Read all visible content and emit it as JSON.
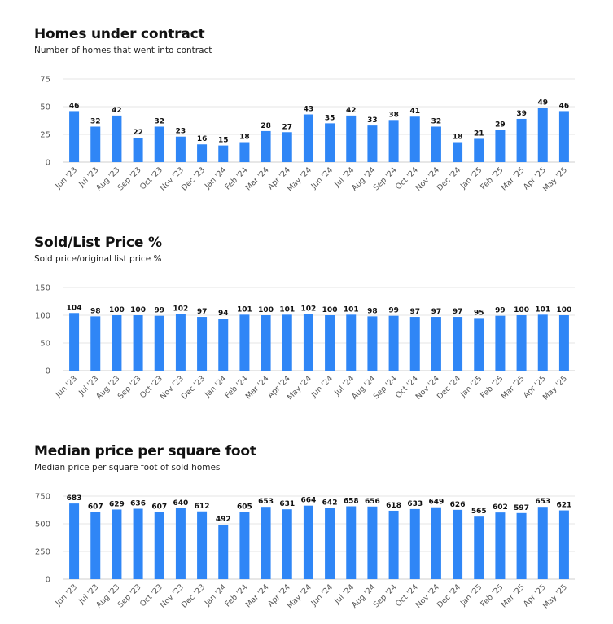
{
  "chart_data": [
    {
      "type": "bar",
      "title": "Homes under contract",
      "subtitle": "Number of homes that went into contract",
      "categories": [
        "Jun '23",
        "Jul '23",
        "Aug '23",
        "Sep '23",
        "Oct '23",
        "Nov '23",
        "Dec '23",
        "Jan '24",
        "Feb '24",
        "Mar '24",
        "Apr '24",
        "May '24",
        "Jun '24",
        "Jul '24",
        "Aug '24",
        "Sep '24",
        "Oct '24",
        "Nov '24",
        "Dec '24",
        "Jan '25",
        "Feb '25",
        "Mar '25",
        "Apr '25",
        "May '25"
      ],
      "values": [
        46,
        32,
        42,
        22,
        32,
        23,
        16,
        15,
        18,
        28,
        27,
        43,
        35,
        42,
        33,
        38,
        41,
        32,
        18,
        21,
        29,
        39,
        49,
        46
      ],
      "ylim": [
        0,
        75
      ],
      "yticks": [
        0,
        25,
        50,
        75
      ],
      "grid": true,
      "colors": {
        "bar": "#2f86f6"
      }
    },
    {
      "type": "bar",
      "title": "Sold/List Price %",
      "subtitle": "Sold price/original list price %",
      "categories": [
        "Jun '23",
        "Jul '23",
        "Aug '23",
        "Sep '23",
        "Oct '23",
        "Nov '23",
        "Dec '23",
        "Jan '24",
        "Feb '24",
        "Mar '24",
        "Apr '24",
        "May '24",
        "Jun '24",
        "Jul '24",
        "Aug '24",
        "Sep '24",
        "Oct '24",
        "Nov '24",
        "Dec '24",
        "Jan '25",
        "Feb '25",
        "Mar '25",
        "Apr '25",
        "May '25"
      ],
      "values": [
        104,
        98,
        100,
        100,
        99,
        102,
        97,
        94,
        101,
        100,
        101,
        102,
        100,
        101,
        98,
        99,
        97,
        97,
        97,
        95,
        99,
        100,
        101,
        100
      ],
      "ylim": [
        0,
        150
      ],
      "yticks": [
        0,
        50,
        100,
        150
      ],
      "grid": true,
      "colors": {
        "bar": "#2f86f6"
      }
    },
    {
      "type": "bar",
      "title": "Median price per square foot",
      "subtitle": "Median price per square foot of sold homes",
      "categories": [
        "Jun '23",
        "Jul '23",
        "Aug '23",
        "Sep '23",
        "Oct '23",
        "Nov '23",
        "Dec '23",
        "Jan '24",
        "Feb '24",
        "Mar '24",
        "Apr '24",
        "May '24",
        "Jun '24",
        "Jul '24",
        "Aug '24",
        "Sep '24",
        "Oct '24",
        "Nov '24",
        "Dec '24",
        "Jan '25",
        "Feb '25",
        "Mar '25",
        "Apr '25",
        "May '25"
      ],
      "values": [
        683,
        607,
        629,
        636,
        607,
        640,
        612,
        492,
        605,
        653,
        631,
        664,
        642,
        658,
        656,
        618,
        633,
        649,
        626,
        565,
        602,
        597,
        653,
        621
      ],
      "ylim": [
        0,
        750
      ],
      "yticks": [
        0,
        250,
        500,
        750
      ],
      "grid": true,
      "colors": {
        "bar": "#2f86f6"
      }
    }
  ]
}
